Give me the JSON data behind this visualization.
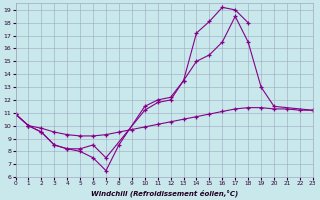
{
  "bg_color": "#c8e8ec",
  "grid_color": "#a0a8c0",
  "line_color": "#880088",
  "xlim": [
    0,
    23
  ],
  "ylim": [
    6,
    19.5
  ],
  "xticks": [
    0,
    1,
    2,
    3,
    4,
    5,
    6,
    7,
    8,
    9,
    10,
    11,
    12,
    13,
    14,
    15,
    16,
    17,
    18,
    19,
    20,
    21,
    22,
    23
  ],
  "yticks": [
    6,
    7,
    8,
    9,
    10,
    11,
    12,
    13,
    14,
    15,
    16,
    17,
    18,
    19
  ],
  "xlabel": "Windchill (Refroidissement éolien,°C)",
  "line1_x": [
    0,
    1,
    2,
    3,
    4,
    5,
    6,
    7,
    8,
    10,
    11,
    12,
    13,
    14,
    15,
    16,
    17,
    18
  ],
  "line1_y": [
    10.9,
    10.0,
    9.5,
    8.5,
    8.2,
    8.0,
    7.5,
    6.5,
    8.5,
    11.5,
    12.0,
    12.2,
    13.5,
    17.2,
    18.1,
    19.2,
    19.0,
    18.0
  ],
  "line2_x": [
    0,
    1,
    2,
    3,
    4,
    5,
    6,
    7,
    10,
    11,
    12,
    13,
    14,
    15,
    16,
    17,
    18,
    19,
    20,
    23
  ],
  "line2_y": [
    10.9,
    10.0,
    9.5,
    8.5,
    8.2,
    8.2,
    8.5,
    7.5,
    11.2,
    11.8,
    12.0,
    13.5,
    15.0,
    15.5,
    16.5,
    18.5,
    16.5,
    13.0,
    11.5,
    11.2
  ],
  "line3_x": [
    0,
    1,
    2,
    3,
    4,
    5,
    6,
    7,
    8,
    9,
    10,
    11,
    12,
    13,
    14,
    15,
    16,
    17,
    18,
    19,
    20,
    21,
    22,
    23
  ],
  "line3_y": [
    10.9,
    10.0,
    9.8,
    9.5,
    9.3,
    9.2,
    9.2,
    9.3,
    9.5,
    9.7,
    9.9,
    10.1,
    10.3,
    10.5,
    10.7,
    10.9,
    11.1,
    11.3,
    11.4,
    11.4,
    11.3,
    11.3,
    11.2,
    11.2
  ]
}
